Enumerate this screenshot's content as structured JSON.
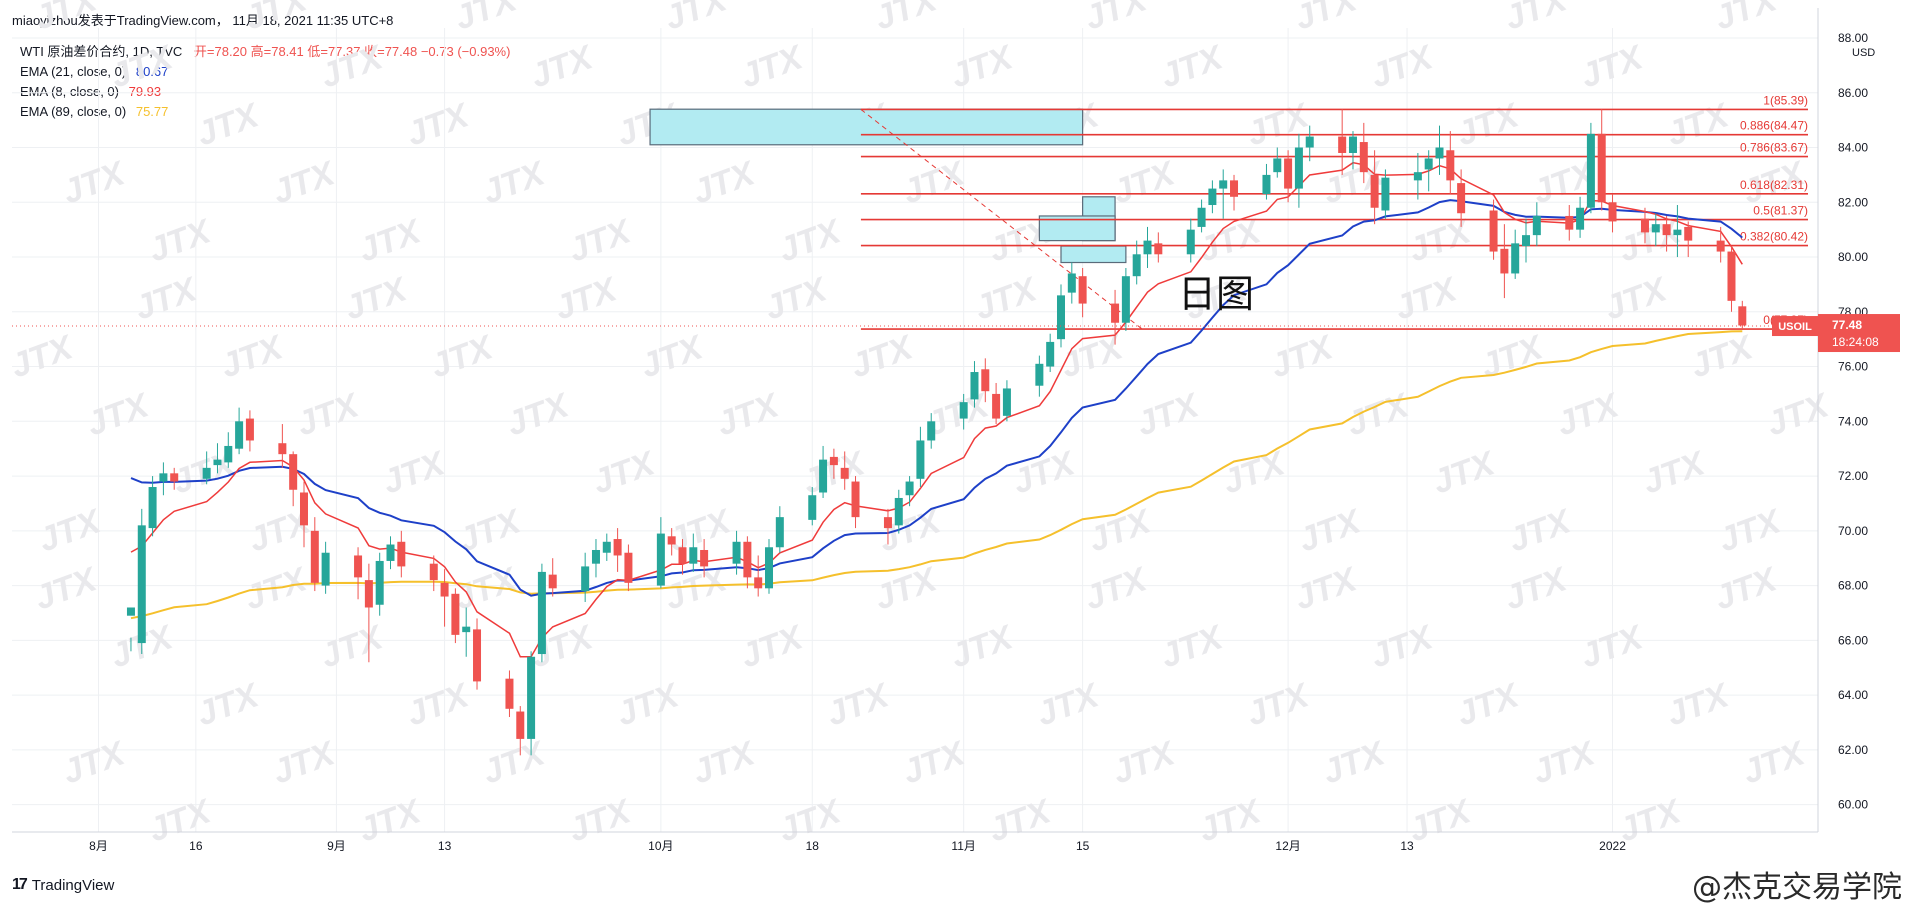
{
  "header": {
    "publisher": "miaoyizhou发表于TradingView.com， 11月 18, 2021 11:35 UTC+8"
  },
  "legend": {
    "symbol": "WTI 原油差价合约, 1D, TVC",
    "ohlc": "开=78.20  高=78.41  低=77.37  收=77.48  −0.73 (−0.93%)",
    "ema21_label": "EMA (21, close, 0)",
    "ema21_value": "80.67",
    "ema8_label": "EMA (8, close, 0)",
    "ema8_value": "79.93",
    "ema89_label": "EMA (89, close, 0)",
    "ema89_value": "75.77"
  },
  "currency": "USD",
  "annotation_text": "日图",
  "footer": {
    "brand": "TradingView",
    "watermark": "@杰克交易学院"
  },
  "price_tag": {
    "symbol": "USOIL",
    "price": "77.48",
    "countdown": "18:24:08"
  },
  "watermark_label": "JTX",
  "colors": {
    "up": "#26a69a",
    "down": "#ef5350",
    "ema21": "#1e40c8",
    "ema8": "#ef3b3b",
    "ema89": "#f5c02c",
    "zone": "#b2ebf2",
    "fib": "#e53935",
    "grid": "#eef0f3"
  },
  "chart_data": {
    "type": "candlestick",
    "y_axis": {
      "min": 59,
      "max": 88,
      "ticks": [
        "60.00",
        "62.00",
        "64.00",
        "66.00",
        "68.00",
        "70.00",
        "72.00",
        "74.00",
        "76.00",
        "78.00",
        "80.00",
        "82.00",
        "84.00",
        "86.00",
        "88.00"
      ]
    },
    "x_ticks": [
      {
        "label": "8月",
        "day": -3
      },
      {
        "label": "16",
        "day": 6
      },
      {
        "label": "9月",
        "day": 19
      },
      {
        "label": "13",
        "day": 29
      },
      {
        "label": "10月",
        "day": 49
      },
      {
        "label": "18",
        "day": 63
      },
      {
        "label": "11月",
        "day": 77
      },
      {
        "label": "15",
        "day": 88
      },
      {
        "label": "12月",
        "day": 107
      },
      {
        "label": "13",
        "day": 118
      },
      {
        "label": "2022",
        "day": 137
      }
    ],
    "x_range_days": [
      -11,
      156
    ],
    "candles": [
      [
        66.9,
        67.2,
        66.1,
        65.6
      ],
      [
        65.9,
        70.2,
        70.8,
        65.5
      ],
      [
        70.1,
        71.6,
        72.0,
        69.8
      ],
      [
        71.8,
        72.1,
        72.5,
        71.3
      ],
      [
        72.1,
        71.8,
        72.3,
        71.5
      ],
      [
        71.9,
        72.3,
        72.9,
        71.7
      ],
      [
        72.4,
        72.6,
        73.2,
        72.1
      ],
      [
        72.5,
        73.1,
        73.6,
        72.3
      ],
      [
        73.0,
        74.0,
        74.5,
        72.8
      ],
      [
        74.1,
        73.3,
        74.4,
        72.9
      ],
      [
        73.2,
        72.8,
        73.9,
        72.3
      ],
      [
        72.8,
        71.5,
        72.9,
        70.9
      ],
      [
        71.4,
        70.2,
        71.8,
        69.4
      ],
      [
        70.0,
        68.1,
        70.5,
        67.8
      ],
      [
        68.0,
        69.2,
        69.6,
        67.7
      ],
      [
        69.1,
        68.3,
        69.4,
        67.5
      ],
      [
        68.2,
        67.2,
        68.8,
        65.2
      ],
      [
        67.3,
        68.9,
        69.2,
        66.9
      ],
      [
        68.9,
        69.5,
        69.8,
        68.6
      ],
      [
        69.6,
        68.7,
        70.0,
        68.3
      ],
      [
        68.8,
        68.2,
        69.1,
        67.8
      ],
      [
        68.1,
        67.6,
        68.6,
        66.5
      ],
      [
        67.7,
        66.2,
        67.9,
        65.9
      ],
      [
        66.3,
        66.5,
        67.2,
        65.4
      ],
      [
        66.4,
        64.5,
        66.8,
        64.2
      ],
      [
        64.6,
        63.5,
        64.9,
        63.2
      ],
      [
        63.4,
        62.4,
        63.6,
        61.8
      ],
      [
        62.4,
        65.4,
        65.6,
        61.8
      ],
      [
        65.5,
        68.5,
        68.8,
        65.2
      ],
      [
        68.4,
        67.9,
        69.0,
        67.6
      ],
      [
        67.8,
        68.7,
        69.2,
        67.4
      ],
      [
        68.8,
        69.3,
        69.7,
        68.3
      ],
      [
        69.2,
        69.6,
        69.9,
        68.9
      ],
      [
        69.7,
        69.1,
        70.1,
        68.5
      ],
      [
        69.2,
        68.1,
        69.5,
        67.8
      ],
      [
        68.0,
        69.9,
        70.5,
        67.9
      ],
      [
        69.8,
        69.5,
        70.1,
        69.1
      ],
      [
        69.4,
        68.8,
        69.7,
        68.4
      ],
      [
        68.8,
        69.4,
        69.9,
        68.5
      ],
      [
        69.3,
        68.7,
        69.7,
        68.3
      ],
      [
        68.8,
        69.6,
        70.0,
        68.4
      ],
      [
        69.6,
        68.3,
        69.8,
        67.9
      ],
      [
        68.3,
        67.9,
        69.1,
        67.6
      ],
      [
        67.9,
        69.4,
        69.7,
        67.7
      ],
      [
        69.4,
        70.5,
        70.9,
        69.2
      ],
      [
        70.4,
        71.3,
        71.6,
        70.2
      ],
      [
        71.4,
        72.6,
        73.1,
        71.2
      ],
      [
        72.7,
        72.4,
        73.0,
        71.9
      ],
      [
        72.3,
        71.9,
        72.9,
        71.5
      ],
      [
        71.8,
        70.5,
        72.0,
        70.1
      ],
      [
        70.5,
        70.1,
        70.8,
        69.5
      ],
      [
        70.2,
        71.2,
        71.5,
        69.9
      ],
      [
        71.3,
        71.8,
        72.0,
        70.9
      ],
      [
        71.9,
        73.3,
        73.8,
        71.6
      ],
      [
        73.3,
        74.0,
        74.3,
        73.0
      ],
      [
        74.1,
        74.7,
        75.0,
        73.7
      ],
      [
        74.8,
        75.8,
        76.2,
        74.5
      ],
      [
        75.9,
        75.1,
        76.3,
        74.7
      ],
      [
        75.0,
        74.1,
        75.4,
        73.9
      ],
      [
        74.2,
        75.2,
        75.5,
        74.0
      ],
      [
        75.3,
        76.1,
        76.4,
        74.9
      ],
      [
        76.0,
        76.9,
        77.2,
        75.8
      ],
      [
        77.0,
        78.6,
        79.0,
        76.7
      ],
      [
        78.7,
        79.4,
        79.8,
        78.3
      ],
      [
        79.3,
        78.3,
        79.6,
        77.8
      ],
      [
        78.3,
        77.6,
        78.8,
        76.8
      ],
      [
        77.6,
        79.3,
        79.6,
        77.3
      ],
      [
        79.3,
        80.1,
        80.6,
        79.0
      ],
      [
        80.1,
        80.6,
        81.1,
        79.6
      ],
      [
        80.5,
        80.1,
        80.9,
        79.8
      ],
      [
        80.1,
        81.0,
        81.4,
        79.8
      ],
      [
        81.1,
        81.8,
        82.1,
        80.9
      ],
      [
        81.9,
        82.5,
        82.8,
        81.6
      ],
      [
        82.5,
        82.8,
        83.2,
        81.4
      ],
      [
        82.8,
        82.2,
        83.0,
        81.7
      ],
      [
        82.3,
        83.0,
        83.4,
        82.1
      ],
      [
        83.1,
        83.6,
        84.0,
        82.9
      ],
      [
        83.6,
        82.5,
        83.9,
        82.0
      ],
      [
        82.5,
        84.0,
        84.5,
        81.8
      ],
      [
        84.0,
        84.4,
        84.8,
        83.5
      ],
      [
        84.4,
        83.8,
        85.4,
        83.0
      ],
      [
        83.8,
        84.4,
        84.6,
        83.2
      ],
      [
        84.2,
        83.1,
        84.9,
        82.7
      ],
      [
        83.0,
        81.8,
        83.9,
        81.2
      ],
      [
        81.7,
        82.9,
        83.2,
        81.4
      ],
      [
        82.8,
        83.1,
        83.8,
        82.1
      ],
      [
        83.2,
        83.6,
        83.9,
        82.4
      ],
      [
        83.6,
        84.0,
        84.8,
        83.0
      ],
      [
        83.9,
        82.8,
        84.6,
        82.3
      ],
      [
        82.7,
        81.6,
        83.2,
        81.1
      ],
      [
        81.7,
        80.2,
        82.1,
        79.9
      ],
      [
        80.3,
        79.4,
        81.2,
        78.5
      ],
      [
        79.4,
        80.5,
        81.0,
        79.2
      ],
      [
        80.4,
        80.8,
        81.4,
        79.8
      ],
      [
        80.8,
        81.5,
        82.0,
        80.4
      ],
      [
        81.5,
        81.0,
        81.9,
        80.6
      ],
      [
        81.0,
        81.8,
        82.2,
        80.7
      ],
      [
        81.8,
        84.5,
        84.9,
        81.6
      ],
      [
        84.5,
        82.0,
        85.4,
        81.7
      ],
      [
        82.0,
        81.3,
        82.3,
        80.9
      ],
      [
        81.4,
        80.9,
        81.8,
        80.5
      ],
      [
        80.9,
        81.2,
        81.6,
        80.4
      ],
      [
        81.2,
        80.8,
        81.5,
        80.2
      ],
      [
        80.8,
        81.0,
        81.9,
        80.0
      ],
      [
        81.1,
        80.6,
        81.3,
        80.0
      ],
      [
        80.6,
        80.2,
        81.1,
        79.8
      ],
      [
        80.2,
        78.4,
        80.4,
        78.0
      ],
      [
        78.2,
        77.5,
        78.4,
        77.4
      ]
    ],
    "fib_levels": [
      {
        "ratio": "1",
        "value": 85.39
      },
      {
        "ratio": "0.886",
        "value": 84.47
      },
      {
        "ratio": "0.786",
        "value": 83.67
      },
      {
        "ratio": "0.618",
        "value": 82.31
      },
      {
        "ratio": "0.5",
        "value": 81.37
      },
      {
        "ratio": "0.382",
        "value": 80.42
      },
      {
        "ratio": "0",
        "value": 77.37
      }
    ]
  }
}
